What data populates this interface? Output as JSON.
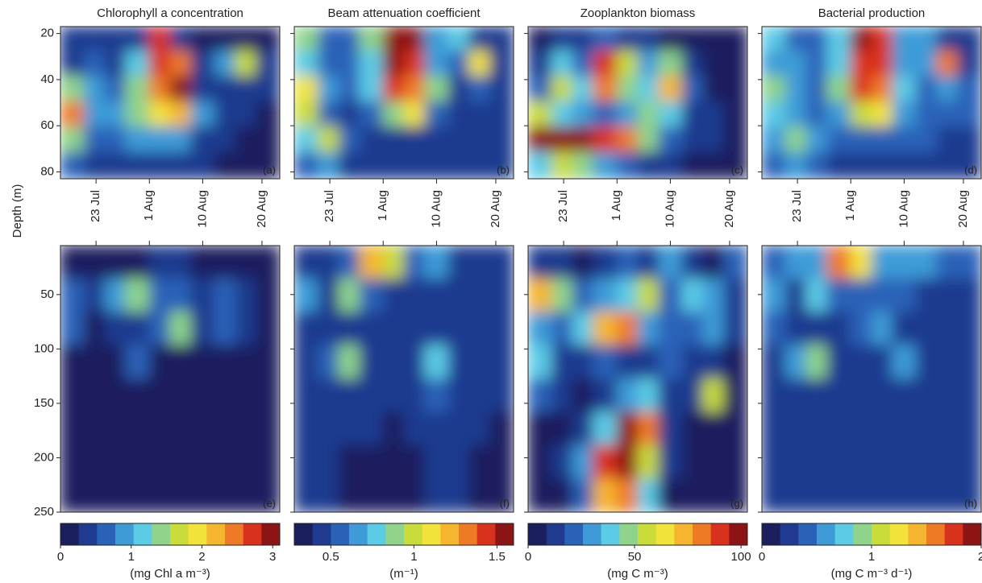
{
  "ylabel": "Depth (m)",
  "colormap": [
    "#1b1f5e",
    "#1f3a8f",
    "#2a62b8",
    "#3e9bd8",
    "#5ccbe6",
    "#8fd48a",
    "#c9dc3a",
    "#f2e33a",
    "#f5b52e",
    "#ef7a25",
    "#d9321c",
    "#8c1414"
  ],
  "chart_data": [
    {
      "type": "heatmap",
      "title": "Chlorophyll a concentration",
      "zlabel": "(mg Chl a m⁻³)",
      "zlim": [
        0,
        3.1
      ],
      "zticks": [
        0,
        1,
        2,
        3
      ],
      "x": [
        200,
        204,
        207,
        211,
        215,
        218,
        222,
        226,
        229,
        233
      ],
      "xlim": [
        198,
        235
      ],
      "xticks": [
        {
          "value": 204,
          "label": "23 Jul"
        },
        {
          "value": 213,
          "label": "1 Aug"
        },
        {
          "value": 222,
          "label": "10 Aug"
        },
        {
          "value": 232,
          "label": "20 Aug"
        }
      ],
      "panels": [
        {
          "label": "(a)",
          "ylim": [
            17,
            83
          ],
          "yticks": [
            20,
            40,
            60,
            80
          ],
          "y": [
            22,
            33,
            44,
            55,
            66,
            77
          ],
          "z": [
            [
              0.3,
              0.3,
              0.3,
              0.5,
              2.8,
              0.5,
              0.2,
              0.2,
              0.2,
              0.2
            ],
            [
              0.4,
              0.6,
              0.5,
              1.2,
              2.6,
              2.5,
              0.4,
              1.0,
              1.8,
              0.3
            ],
            [
              1.5,
              0.8,
              0.6,
              1.5,
              2.5,
              2.9,
              0.5,
              0.4,
              0.4,
              0.3
            ],
            [
              2.5,
              0.8,
              1.0,
              1.5,
              2.0,
              2.2,
              1.0,
              0.4,
              0.3,
              0.2
            ],
            [
              1.5,
              0.7,
              0.7,
              0.8,
              0.8,
              0.8,
              0.5,
              0.3,
              0.2,
              0.2
            ],
            [
              0.6,
              0.4,
              0.4,
              0.5,
              0.4,
              0.4,
              0.3,
              0.2,
              0.2,
              0.2
            ]
          ]
        },
        {
          "label": "(e)",
          "ylim": [
            5,
            250
          ],
          "yticks": [
            50,
            100,
            150,
            200,
            250
          ],
          "y": [
            20,
            51,
            81,
            112,
            143,
            173,
            204,
            235
          ],
          "z": [
            [
              0.2,
              0.2,
              0.2,
              0.2,
              0.4,
              0.3,
              0.2,
              0.2,
              0.2,
              0.2
            ],
            [
              0.6,
              0.3,
              0.8,
              1.3,
              0.7,
              0.6,
              0.4,
              0.6,
              0.5,
              0.2
            ],
            [
              0.6,
              0.2,
              0.3,
              0.4,
              0.6,
              1.5,
              0.4,
              0.6,
              0.3,
              0.2
            ],
            [
              0.15,
              0.15,
              0.15,
              0.6,
              0.2,
              0.2,
              0.2,
              0.15,
              0.15,
              0.15
            ],
            [
              0.15,
              0.15,
              0.15,
              0.15,
              0.15,
              0.15,
              0.15,
              0.15,
              0.15,
              0.15
            ],
            [
              0.15,
              0.15,
              0.15,
              0.15,
              0.15,
              0.15,
              0.15,
              0.15,
              0.15,
              0.15
            ],
            [
              0.15,
              0.15,
              0.15,
              0.15,
              0.15,
              0.15,
              0.15,
              0.15,
              0.15,
              0.15
            ],
            [
              0.15,
              0.15,
              0.15,
              0.15,
              0.15,
              0.15,
              0.15,
              0.15,
              0.15,
              0.15
            ]
          ]
        }
      ]
    },
    {
      "type": "heatmap",
      "title": "Beam attenuation coefficient",
      "zlabel": "(m⁻¹)",
      "zlim": [
        0.28,
        1.6
      ],
      "zticks": [
        0.5,
        1,
        1.5
      ],
      "x": [
        200,
        204,
        207,
        211,
        215,
        218,
        222,
        226,
        229,
        233
      ],
      "xlim": [
        198,
        235
      ],
      "xticks": [
        {
          "value": 204,
          "label": "23 Jul"
        },
        {
          "value": 213,
          "label": "1 Aug"
        },
        {
          "value": 222,
          "label": "10 Aug"
        },
        {
          "value": 232,
          "label": "20 Aug"
        }
      ],
      "panels": [
        {
          "label": "(b)",
          "ylim": [
            17,
            83
          ],
          "yticks": [
            20,
            40,
            60,
            80
          ],
          "y": [
            22,
            33,
            44,
            55,
            66,
            77
          ],
          "z": [
            [
              0.9,
              0.6,
              0.6,
              0.9,
              1.55,
              1.5,
              0.7,
              0.8,
              0.5,
              0.5
            ],
            [
              0.8,
              0.6,
              0.6,
              0.8,
              1.5,
              1.45,
              0.7,
              0.6,
              1.1,
              0.5
            ],
            [
              1.1,
              0.7,
              0.6,
              0.8,
              1.4,
              1.3,
              0.9,
              0.5,
              0.6,
              0.5
            ],
            [
              1.0,
              0.6,
              0.5,
              0.6,
              0.9,
              1.1,
              0.6,
              0.5,
              0.45,
              0.45
            ],
            [
              0.8,
              1.0,
              0.6,
              0.5,
              0.5,
              0.5,
              0.45,
              0.45,
              0.4,
              0.4
            ],
            [
              0.6,
              0.7,
              0.5,
              0.45,
              0.45,
              0.45,
              0.4,
              0.4,
              0.4,
              0.4
            ]
          ]
        },
        {
          "label": "(f)",
          "ylim": [
            5,
            250
          ],
          "yticks": [
            50,
            100,
            150,
            200,
            250
          ],
          "y": [
            20,
            51,
            81,
            112,
            143,
            173,
            204,
            235
          ],
          "z": [
            [
              0.5,
              0.5,
              0.6,
              1.2,
              1.0,
              0.6,
              0.7,
              0.5,
              0.5,
              0.45
            ],
            [
              0.7,
              0.4,
              0.9,
              0.6,
              0.5,
              0.5,
              0.5,
              0.4,
              0.4,
              0.4
            ],
            [
              0.45,
              0.4,
              0.4,
              0.4,
              0.5,
              0.4,
              0.5,
              0.4,
              0.4,
              0.4
            ],
            [
              0.4,
              0.6,
              0.9,
              0.4,
              0.4,
              0.4,
              0.8,
              0.4,
              0.4,
              0.4
            ],
            [
              0.4,
              0.5,
              0.45,
              0.4,
              0.4,
              0.4,
              0.6,
              0.4,
              0.4,
              0.4
            ],
            [
              0.4,
              0.5,
              0.4,
              0.4,
              0.35,
              0.4,
              0.5,
              0.45,
              0.4,
              0.35
            ],
            [
              0.4,
              0.4,
              0.35,
              0.35,
              0.35,
              0.35,
              0.4,
              0.4,
              0.35,
              0.35
            ],
            [
              0.4,
              0.4,
              0.35,
              0.35,
              0.35,
              0.35,
              0.4,
              0.4,
              0.35,
              0.35
            ]
          ]
        }
      ]
    },
    {
      "type": "heatmap",
      "title": "Zooplankton biomass",
      "zlabel": "(mg C m⁻³)",
      "zlim": [
        0,
        103
      ],
      "zticks": [
        0,
        50,
        100
      ],
      "x": [
        200,
        204,
        207,
        211,
        215,
        218,
        222,
        226,
        229,
        233
      ],
      "xlim": [
        198,
        235
      ],
      "xticks": [
        {
          "value": 204,
          "label": "23 Jul"
        },
        {
          "value": 213,
          "label": "1 Aug"
        },
        {
          "value": 222,
          "label": "10 Aug"
        },
        {
          "value": 232,
          "label": "20 Aug"
        }
      ],
      "panels": [
        {
          "label": "(c)",
          "ylim": [
            17,
            83
          ],
          "yticks": [
            20,
            40,
            60,
            80
          ],
          "y": [
            22,
            33,
            44,
            55,
            66,
            77
          ],
          "z": [
            [
              8,
              10,
              12,
              20,
              15,
              10,
              8,
              6,
              5,
              5
            ],
            [
              15,
              40,
              25,
              90,
              60,
              30,
              45,
              10,
              6,
              6
            ],
            [
              20,
              55,
              35,
              80,
              45,
              40,
              70,
              20,
              8,
              6
            ],
            [
              60,
              40,
              30,
              25,
              30,
              50,
              40,
              15,
              10,
              8
            ],
            [
              95,
              100,
              100,
              90,
              80,
              50,
              20,
              15,
              10,
              8
            ],
            [
              40,
              60,
              50,
              30,
              20,
              15,
              10,
              8,
              6,
              6
            ]
          ]
        },
        {
          "label": "(g)",
          "ylim": [
            5,
            250
          ],
          "yticks": [
            50,
            100,
            150,
            200,
            250
          ],
          "y": [
            20,
            51,
            81,
            112,
            143,
            173,
            204,
            235
          ],
          "z": [
            [
              10,
              15,
              5,
              10,
              20,
              10,
              30,
              10,
              5,
              20
            ],
            [
              70,
              50,
              20,
              30,
              40,
              60,
              20,
              40,
              30,
              15
            ],
            [
              30,
              20,
              40,
              70,
              80,
              30,
              20,
              20,
              30,
              10
            ],
            [
              40,
              10,
              10,
              20,
              15,
              10,
              20,
              10,
              10,
              5
            ],
            [
              20,
              10,
              5,
              10,
              30,
              40,
              10,
              15,
              60,
              5
            ],
            [
              5,
              5,
              10,
              40,
              95,
              80,
              10,
              8,
              5,
              5
            ],
            [
              5,
              10,
              30,
              90,
              100,
              60,
              10,
              8,
              5,
              5
            ],
            [
              5,
              8,
              20,
              70,
              80,
              40,
              8,
              5,
              5,
              5
            ]
          ]
        }
      ]
    },
    {
      "type": "heatmap",
      "title": "Bacterial production",
      "zlabel": "(mg C m⁻³ d⁻¹)",
      "zlim": [
        0,
        2
      ],
      "zticks": [
        0,
        1,
        2
      ],
      "x": [
        200,
        204,
        207,
        211,
        215,
        218,
        222,
        226,
        229,
        233
      ],
      "xlim": [
        198,
        235
      ],
      "xticks": [
        {
          "value": 204,
          "label": "23 Jul"
        },
        {
          "value": 213,
          "label": "1 Aug"
        },
        {
          "value": 222,
          "label": "10 Aug"
        },
        {
          "value": 232,
          "label": "20 Aug"
        }
      ],
      "panels": [
        {
          "label": "(d)",
          "ylim": [
            17,
            83
          ],
          "yticks": [
            20,
            40,
            60,
            80
          ],
          "y": [
            22,
            33,
            44,
            55,
            66,
            77
          ],
          "z": [
            [
              0.8,
              0.4,
              0.4,
              0.7,
              1.9,
              1.8,
              0.5,
              0.6,
              0.3,
              0.3
            ],
            [
              0.6,
              0.5,
              0.4,
              0.8,
              1.8,
              1.7,
              0.6,
              0.5,
              1.6,
              0.3
            ],
            [
              0.9,
              0.6,
              0.4,
              0.9,
              1.7,
              1.6,
              0.8,
              0.4,
              0.5,
              0.4
            ],
            [
              0.7,
              0.5,
              0.4,
              0.6,
              1.0,
              1.2,
              0.5,
              0.4,
              0.4,
              0.4
            ],
            [
              0.5,
              0.9,
              0.5,
              0.4,
              0.4,
              0.4,
              0.4,
              0.4,
              0.3,
              0.3
            ],
            [
              0.4,
              0.6,
              0.4,
              0.3,
              0.3,
              0.3,
              0.3,
              0.3,
              0.3,
              0.3
            ]
          ]
        },
        {
          "label": "(h)",
          "ylim": [
            5,
            250
          ],
          "yticks": [
            50,
            100,
            150,
            200,
            250
          ],
          "y": [
            20,
            51,
            81,
            112,
            143,
            173,
            204,
            235
          ],
          "z": [
            [
              0.4,
              0.5,
              0.6,
              1.6,
              1.2,
              0.5,
              0.6,
              0.5,
              0.4,
              0.4
            ],
            [
              0.6,
              0.3,
              0.8,
              0.4,
              0.4,
              0.4,
              0.4,
              0.3,
              0.3,
              0.3
            ],
            [
              0.35,
              0.3,
              0.3,
              0.3,
              0.4,
              0.5,
              0.3,
              0.3,
              0.3,
              0.3
            ],
            [
              0.3,
              0.5,
              0.9,
              0.3,
              0.3,
              0.3,
              0.6,
              0.3,
              0.3,
              0.3
            ],
            [
              0.3,
              0.3,
              0.3,
              0.3,
              0.3,
              0.3,
              0.3,
              0.3,
              0.3,
              0.3
            ],
            [
              0.3,
              0.3,
              0.3,
              0.3,
              0.3,
              0.3,
              0.3,
              0.3,
              0.3,
              0.3
            ],
            [
              0.3,
              0.3,
              0.3,
              0.3,
              0.3,
              0.3,
              0.3,
              0.3,
              0.3,
              0.3
            ],
            [
              0.3,
              0.3,
              0.3,
              0.3,
              0.3,
              0.3,
              0.3,
              0.3,
              0.3,
              0.3
            ]
          ]
        }
      ]
    }
  ]
}
